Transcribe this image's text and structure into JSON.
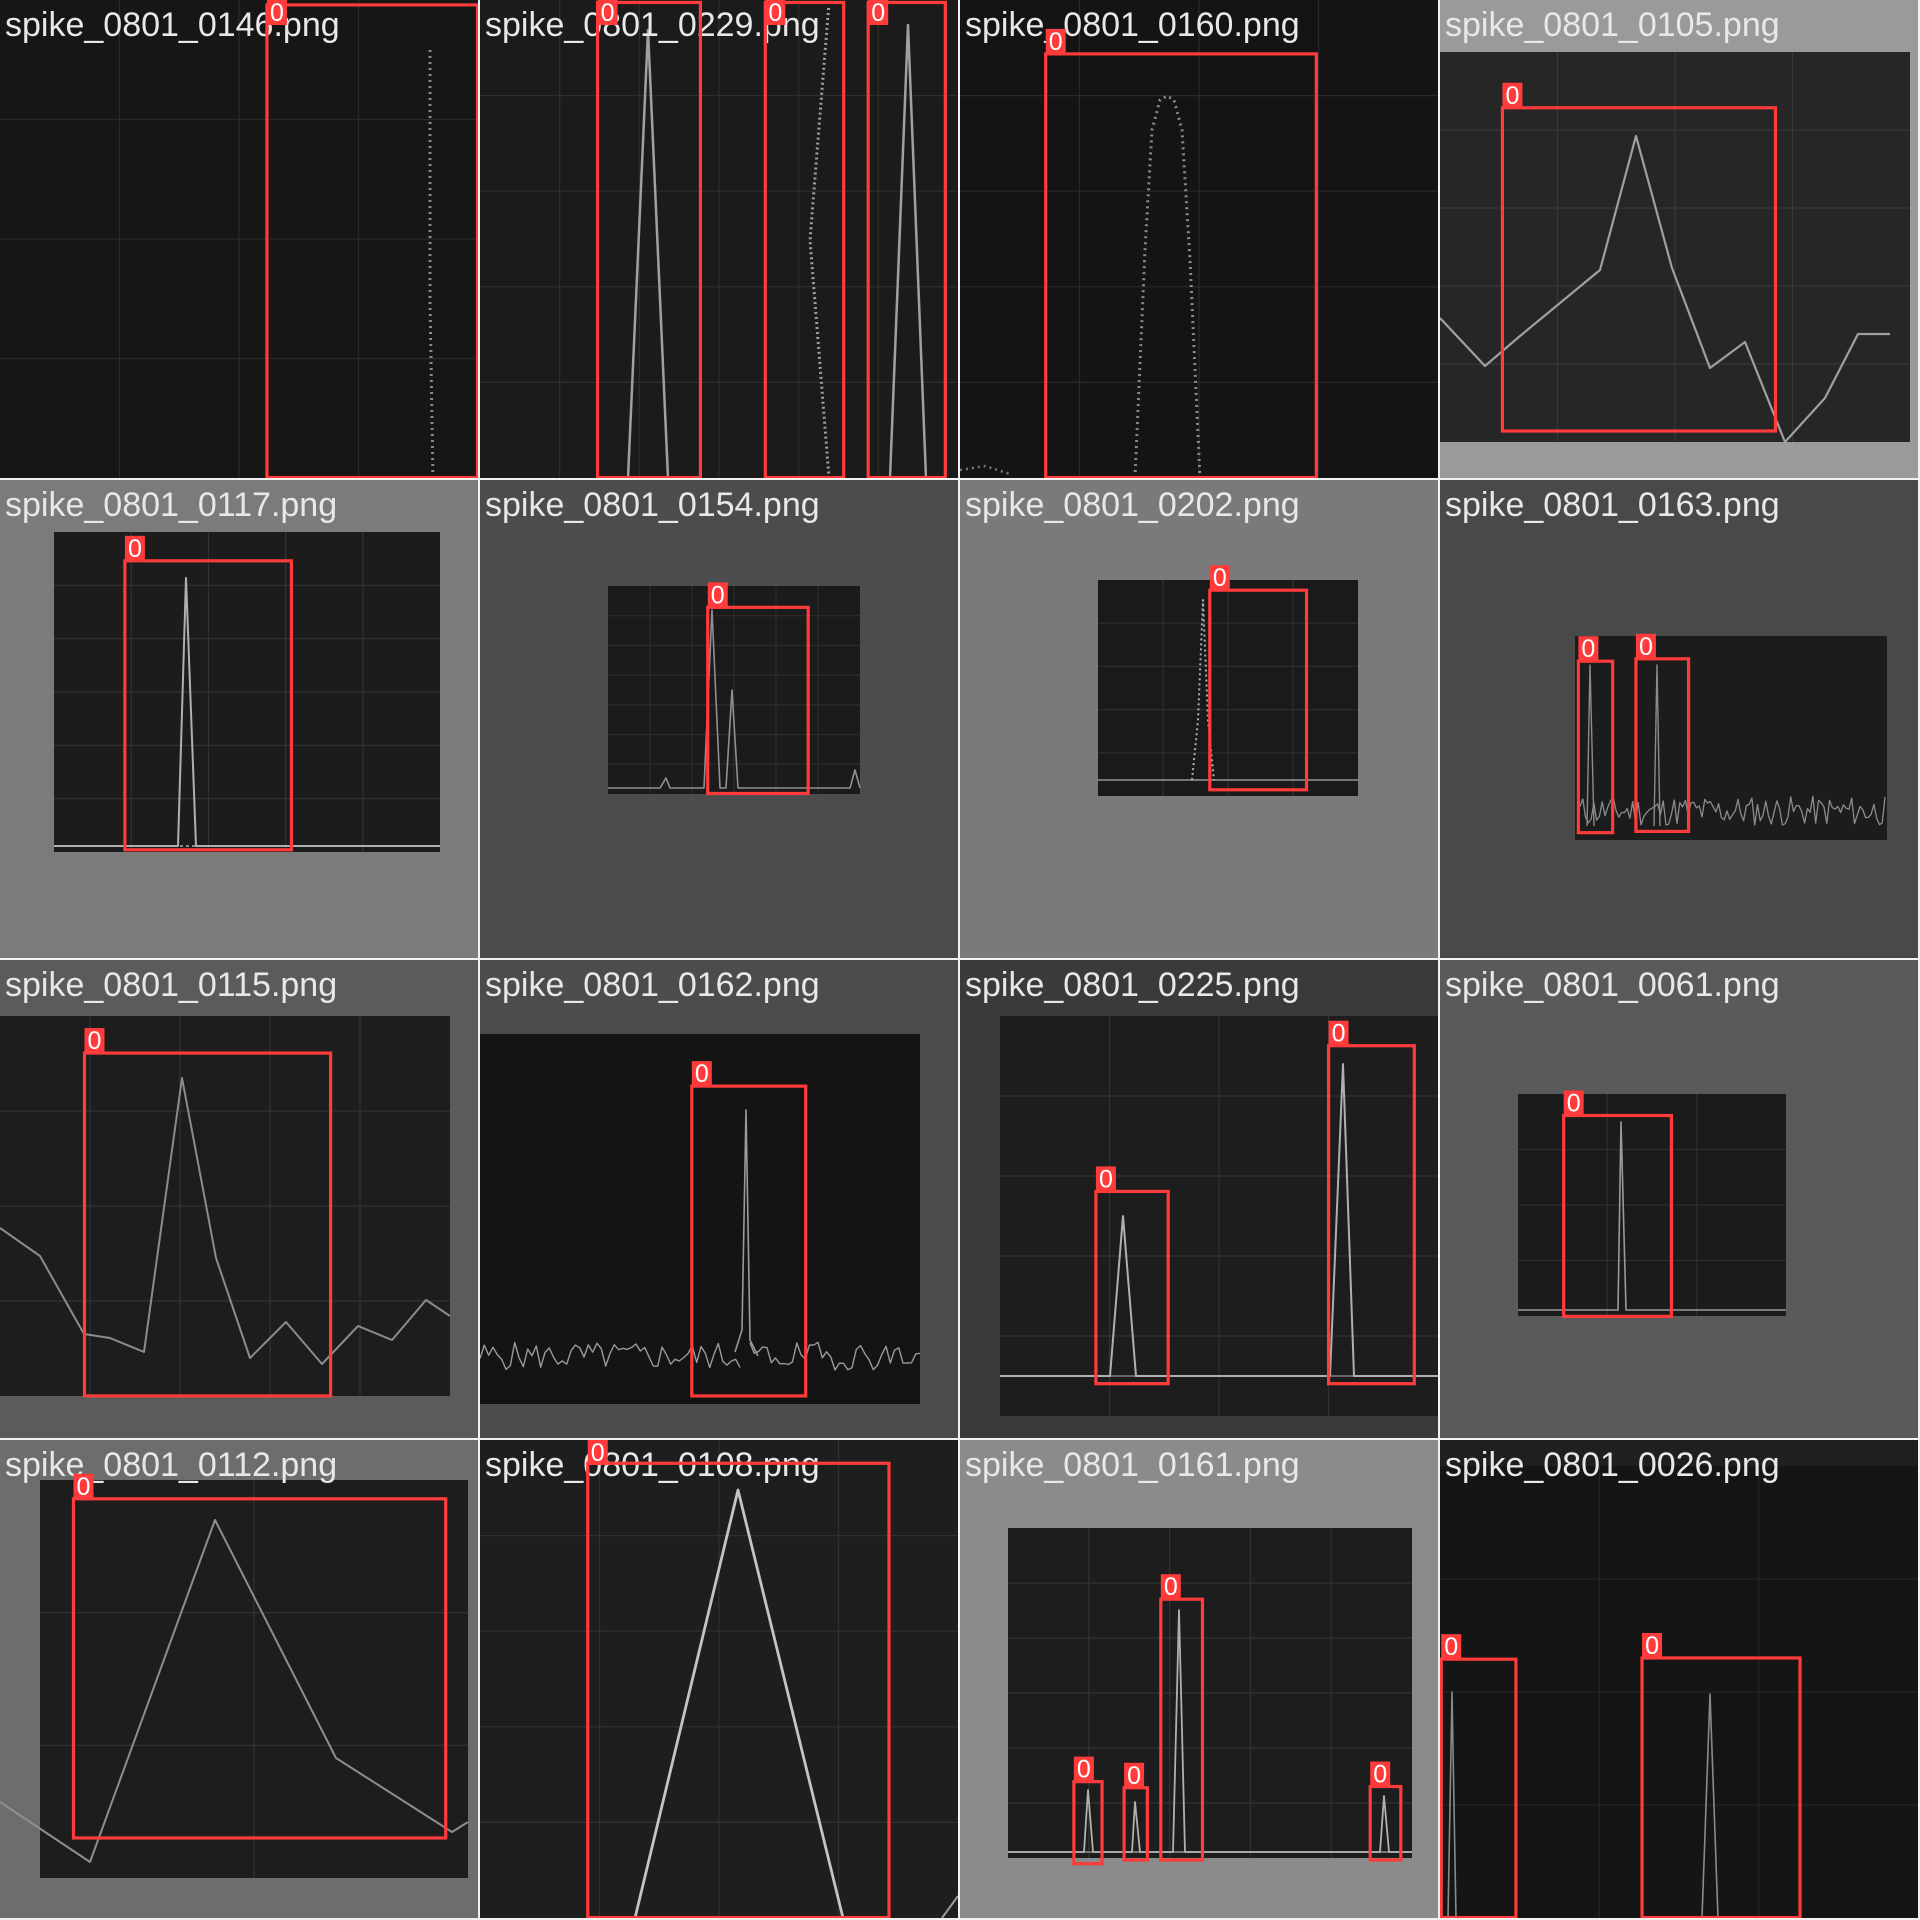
{
  "mosaic": {
    "box_label": "0",
    "colors": {
      "box": "#ff3b3b",
      "label_bg": "#ff3b3b",
      "label_text": "#ffffff",
      "filename_text": "#e8e8e8"
    },
    "tiles": [
      {
        "filename": "spike_0801_0146.png",
        "detections": 1
      },
      {
        "filename": "spike_0801_0229.png",
        "detections": 3
      },
      {
        "filename": "spike_0801_0160.png",
        "detections": 1
      },
      {
        "filename": "spike_0801_0105.png",
        "detections": 1
      },
      {
        "filename": "spike_0801_0117.png",
        "detections": 1
      },
      {
        "filename": "spike_0801_0154.png",
        "detections": 1
      },
      {
        "filename": "spike_0801_0202.png",
        "detections": 1
      },
      {
        "filename": "spike_0801_0163.png",
        "detections": 2
      },
      {
        "filename": "spike_0801_0115.png",
        "detections": 1
      },
      {
        "filename": "spike_0801_0162.png",
        "detections": 1
      },
      {
        "filename": "spike_0801_0225.png",
        "detections": 2
      },
      {
        "filename": "spike_0801_0061.png",
        "detections": 1
      },
      {
        "filename": "spike_0801_0112.png",
        "detections": 1
      },
      {
        "filename": "spike_0801_0108.png",
        "detections": 1
      },
      {
        "filename": "spike_0801_0161.png",
        "detections": 4
      },
      {
        "filename": "spike_0801_0026.png",
        "detections": 2
      }
    ]
  }
}
